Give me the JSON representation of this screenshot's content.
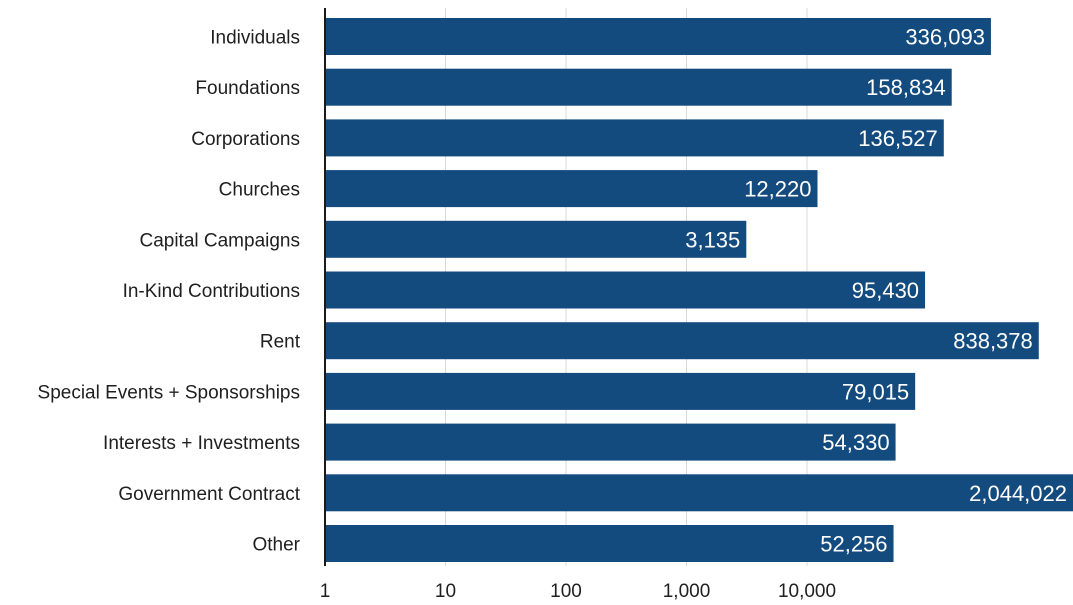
{
  "chart_data": {
    "type": "bar",
    "orientation": "horizontal",
    "scale": "log",
    "categories": [
      "Individuals",
      "Foundations",
      "Corporations",
      "Churches",
      "Capital Campaigns",
      "In-Kind Contributions",
      "Rent",
      "Special Events + Sponsorships",
      "Interests + Investments",
      "Government Contract",
      "Other"
    ],
    "values": [
      336093,
      158834,
      136527,
      12220,
      3135,
      95430,
      838378,
      79015,
      54330,
      2044022,
      52256
    ],
    "value_labels": [
      "336,093",
      "158,834",
      "136,527",
      "12,220",
      "3,135",
      "95,430",
      "838,378",
      "79,015",
      "54,330",
      "2,044,022",
      "52,256"
    ],
    "ticks": [
      1,
      10,
      100,
      1000,
      10000
    ],
    "tick_labels": [
      "1",
      "10",
      "100",
      "1,000",
      "10,000"
    ],
    "xlim": [
      1,
      2044022
    ],
    "grid": true,
    "bar_color": "#144b7f",
    "label_color": "#ffffff"
  }
}
